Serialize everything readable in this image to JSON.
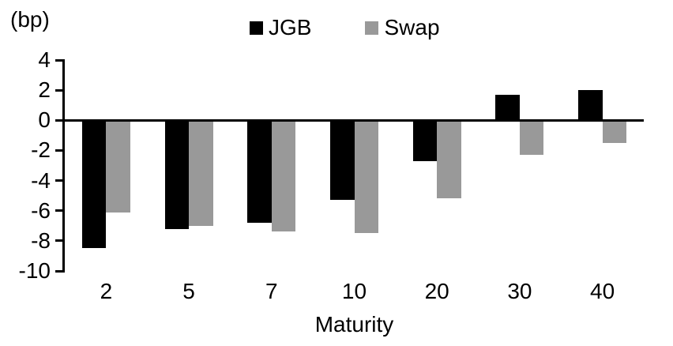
{
  "chart_data": {
    "type": "bar",
    "title": "",
    "unit_label": "(bp)",
    "xlabel": "Maturity",
    "ylabel": "",
    "categories": [
      "2",
      "5",
      "7",
      "10",
      "20",
      "30",
      "40"
    ],
    "series": [
      {
        "name": "JGB",
        "color": "#000000",
        "values": [
          -8.5,
          -7.2,
          -6.8,
          -5.3,
          -2.7,
          1.7,
          2.0
        ]
      },
      {
        "name": "Swap",
        "color": "#999999",
        "values": [
          -6.1,
          -7.0,
          -7.4,
          -7.5,
          -5.2,
          -2.3,
          -1.5
        ]
      }
    ],
    "ylim": [
      -10,
      4
    ],
    "yticks": [
      4,
      2,
      0,
      -2,
      -4,
      -6,
      -8,
      -10
    ],
    "grid": false,
    "legend_position": "top-center",
    "axis_color": "#000000",
    "background_color": "#ffffff"
  }
}
